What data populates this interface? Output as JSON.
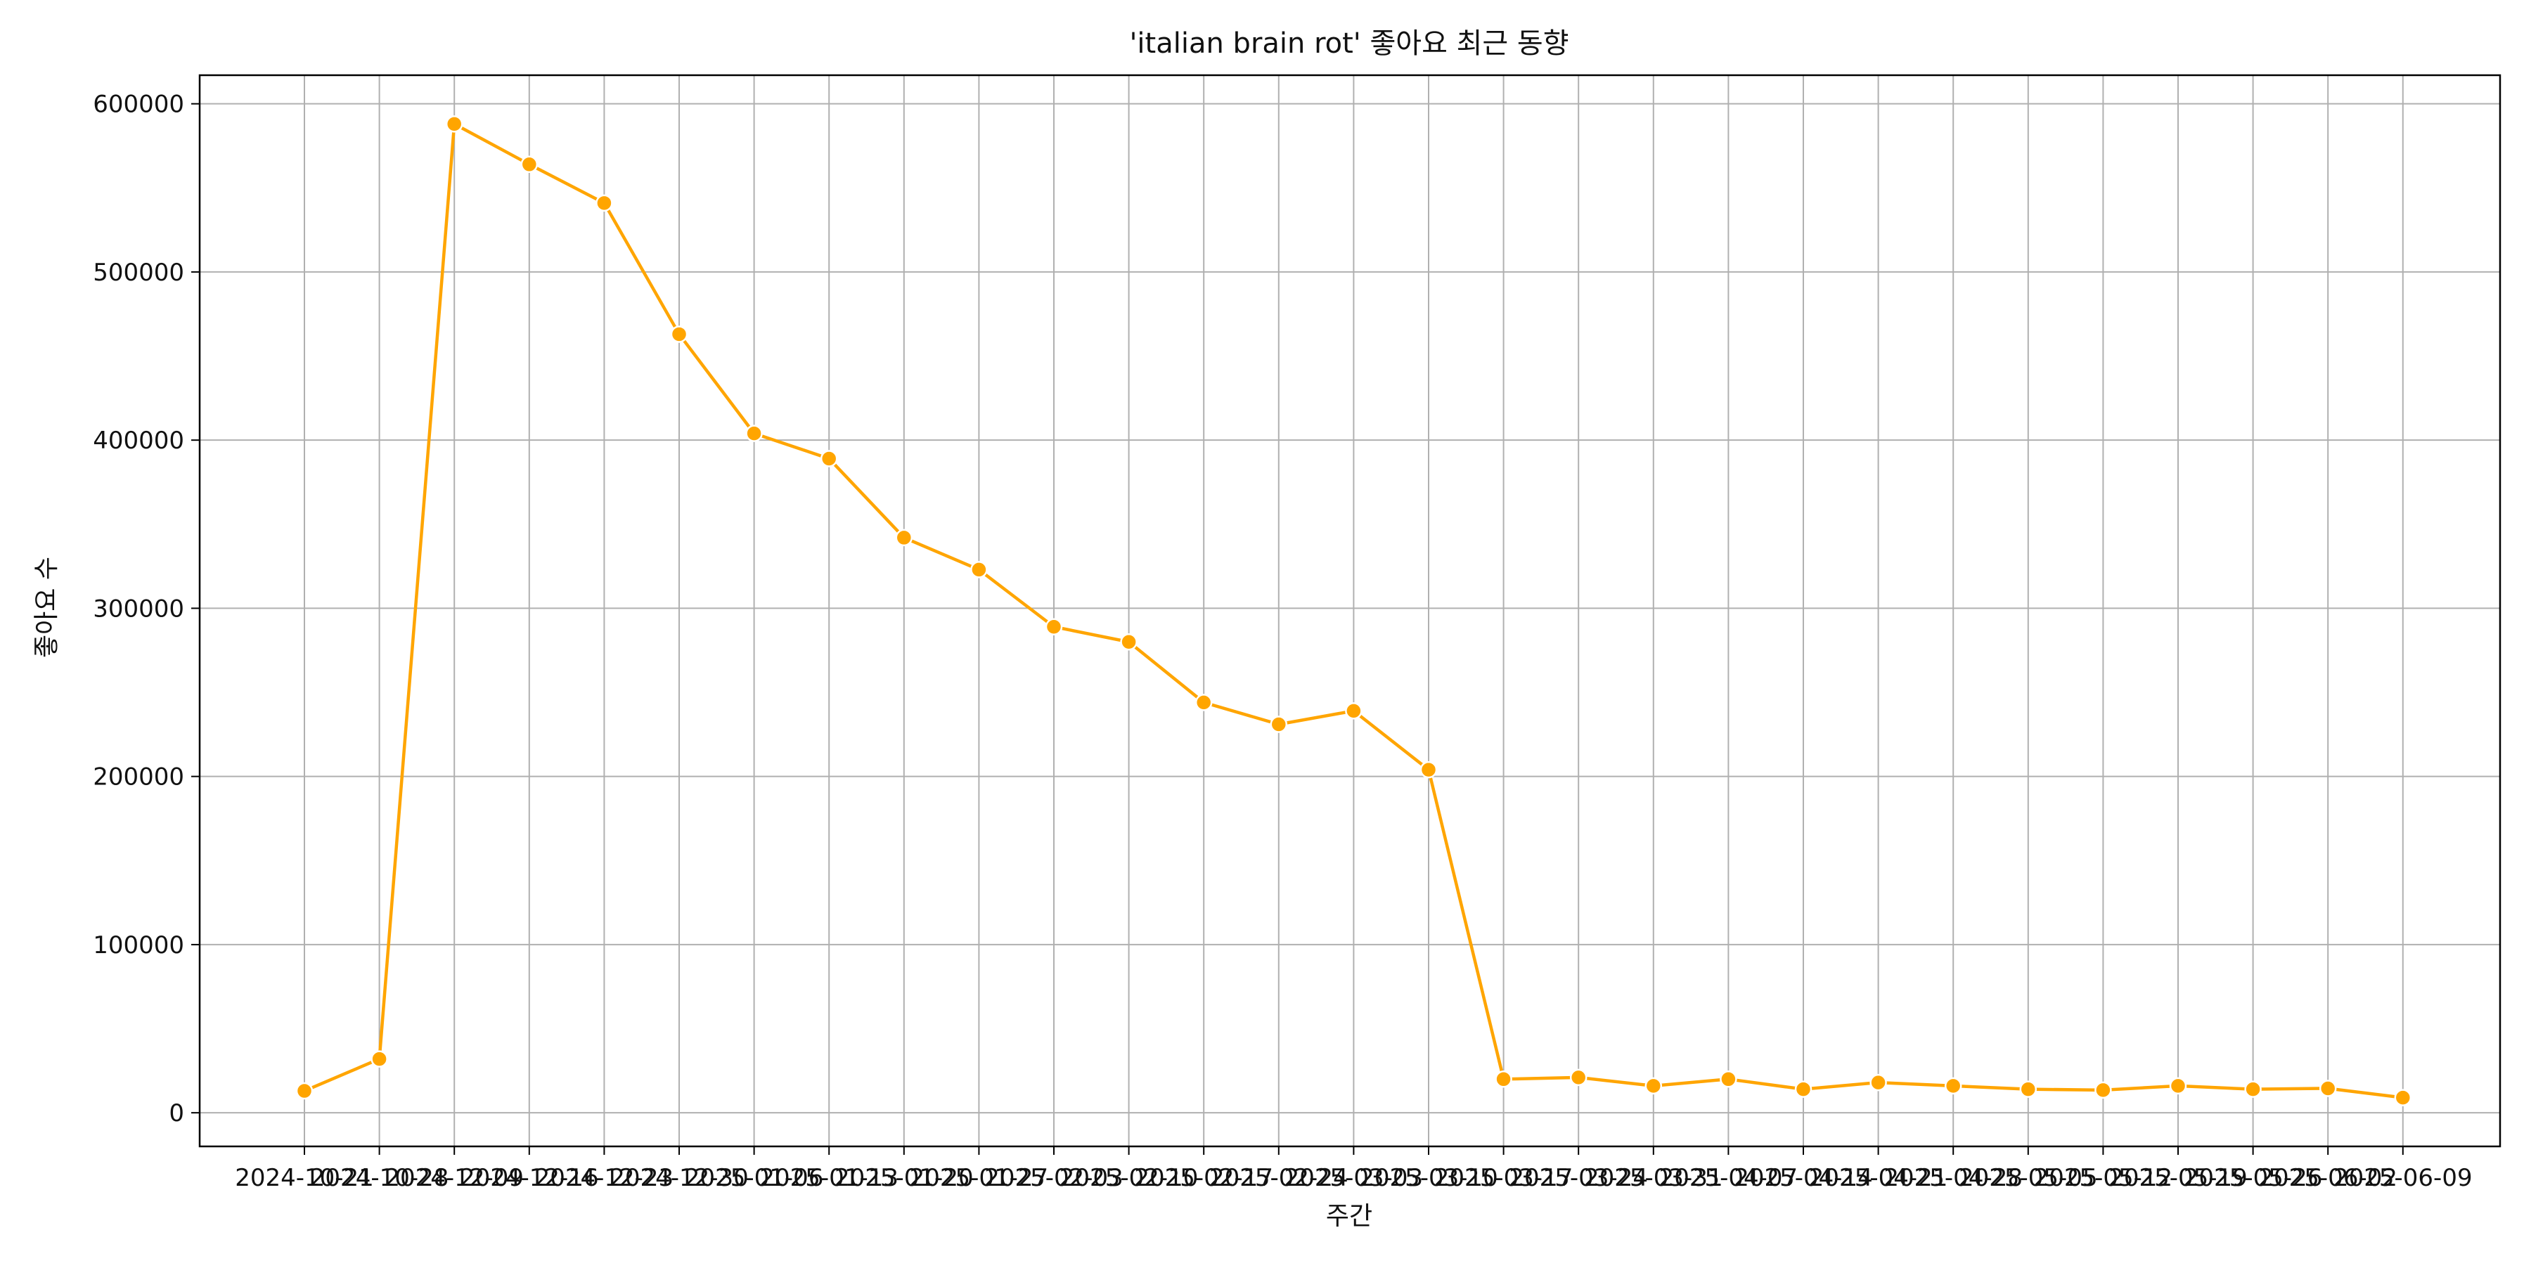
{
  "chart_data": {
    "type": "line",
    "title": "'italian brain rot' 좋아요 최근 동향",
    "xlabel": "주간",
    "ylabel": "좋아요 수",
    "x": [
      "2024-10-21",
      "2024-10-28",
      "2024-12-09",
      "2024-12-16",
      "2024-12-23",
      "2024-12-30",
      "2025-01-06",
      "2025-01-13",
      "2025-01-20",
      "2025-01-27",
      "2025-02-03",
      "2025-02-10",
      "2025-02-17",
      "2025-02-24",
      "2025-03-03",
      "2025-03-10",
      "2025-03-17",
      "2025-03-24",
      "2025-03-31",
      "2025-04-07",
      "2025-04-14",
      "2025-04-21",
      "2025-04-28",
      "2025-05-05",
      "2025-05-12",
      "2025-05-19",
      "2025-05-26",
      "2025-06-02",
      "2025-06-09"
    ],
    "series": [
      {
        "values": [
          13000,
          32000,
          588000,
          564000,
          541000,
          463000,
          404000,
          389000,
          342000,
          323000,
          289000,
          280000,
          244000,
          231000,
          239000,
          204000,
          20000,
          21000,
          16000,
          20000,
          14000,
          18000,
          16000,
          14000,
          13500,
          16000,
          14000,
          14500,
          9000
        ],
        "color": "#FFA500",
        "marker": "circle"
      }
    ],
    "yticks": [
      0,
      100000,
      200000,
      300000,
      400000,
      500000,
      600000
    ],
    "ylim": [
      -20000,
      617000
    ],
    "grid": true,
    "grid_color": "#b0b0b0"
  }
}
